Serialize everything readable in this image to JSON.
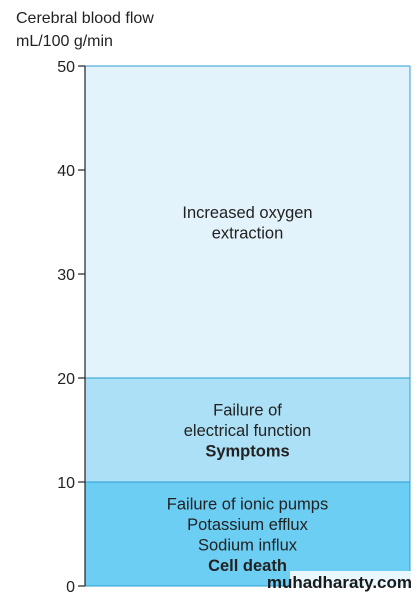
{
  "chart_data": {
    "type": "bar",
    "title": "",
    "ylabel_lines": [
      "Cerebral blood flow",
      "mL/100 g/min"
    ],
    "ylim": [
      0,
      50
    ],
    "yticks": [
      0,
      10,
      20,
      30,
      40,
      50
    ],
    "grid": false,
    "bands": [
      {
        "from": 20,
        "to": 50,
        "color": "#e3f3fc",
        "lines": [
          {
            "text": "Increased oxygen",
            "bold": false
          },
          {
            "text": "extraction",
            "bold": false
          }
        ]
      },
      {
        "from": 10,
        "to": 20,
        "color": "#ace0f6",
        "lines": [
          {
            "text": "Failure of",
            "bold": false
          },
          {
            "text": "electrical function",
            "bold": false
          },
          {
            "text": "Symptoms",
            "bold": true
          }
        ]
      },
      {
        "from": 0,
        "to": 10,
        "color": "#6ccef3",
        "lines": [
          {
            "text": "Failure of ionic pumps",
            "bold": false
          },
          {
            "text": "Potassium efflux",
            "bold": false
          },
          {
            "text": "Sodium influx",
            "bold": false
          },
          {
            "text": "Cell death",
            "bold": true
          }
        ]
      }
    ],
    "divider_color": "#2b9fd1",
    "axis_color": "#222222"
  },
  "watermark": {
    "text": "muhadharaty.com"
  }
}
